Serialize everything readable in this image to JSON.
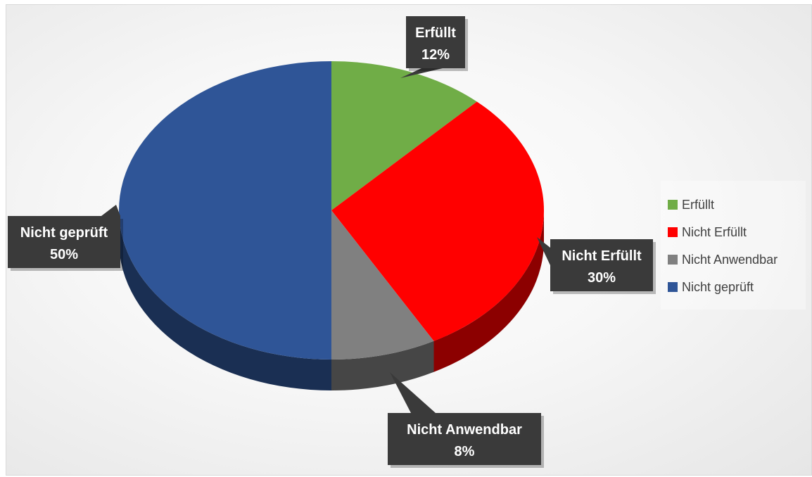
{
  "chart_data": {
    "type": "pie",
    "title": "",
    "categories": [
      "Erfüllt",
      "Nicht Erfüllt",
      "Nicht Anwendbar",
      "Nicht geprüft"
    ],
    "values": [
      12,
      30,
      8,
      50
    ],
    "value_labels": [
      "12%",
      "30%",
      "8%",
      "50%"
    ],
    "colors": [
      "#70ad47",
      "#ff0000",
      "#808080",
      "#2f5597"
    ],
    "legend_position": "right",
    "style": "3d"
  },
  "legend": {
    "items": [
      {
        "label": "Erfüllt",
        "color": "#70ad47"
      },
      {
        "label": "Nicht Erfüllt",
        "color": "#ff0000"
      },
      {
        "label": "Nicht Anwendbar",
        "color": "#808080"
      },
      {
        "label": "Nicht geprüft",
        "color": "#2f5597"
      }
    ]
  }
}
